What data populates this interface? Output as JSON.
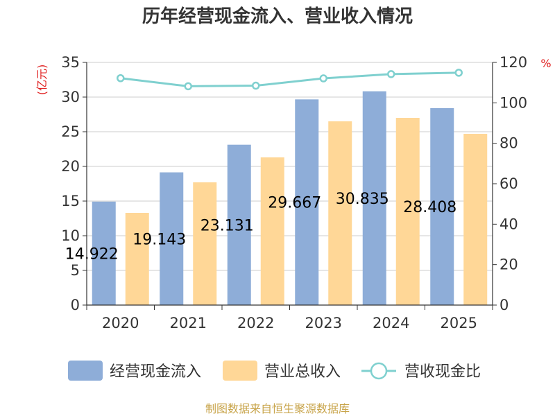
{
  "chart_data": {
    "type": "bar+line",
    "title": "历年经营现金流入、营业收入情况",
    "categories": [
      "2020",
      "2021",
      "2022",
      "2023",
      "2024",
      "2025"
    ],
    "series": [
      {
        "name": "经营现金流入",
        "type": "bar",
        "axis": "left",
        "values": [
          14.922,
          19.143,
          23.131,
          29.667,
          30.835,
          28.408
        ],
        "labels": [
          "14.922",
          "19.143",
          "23.131",
          "29.667",
          "30.835",
          "28.408"
        ]
      },
      {
        "name": "营业总收入",
        "type": "bar",
        "axis": "left",
        "values": [
          13.3,
          17.7,
          21.3,
          26.5,
          27.0,
          24.7
        ]
      },
      {
        "name": "营收现金比",
        "type": "line",
        "axis": "right",
        "values": [
          112.2,
          108.2,
          108.5,
          112.1,
          114.2,
          114.9
        ]
      }
    ],
    "y_left": {
      "unit": "(亿元)",
      "min": 0,
      "max": 35,
      "ticks": [
        0,
        5,
        10,
        15,
        20,
        25,
        30,
        35
      ]
    },
    "y_right": {
      "unit": "%",
      "min": 0,
      "max": 120,
      "ticks": [
        0,
        20,
        40,
        60,
        80,
        100,
        120
      ]
    },
    "grid": true,
    "legend_position": "bottom"
  },
  "colors": {
    "cash_inflow": "#8eadd8",
    "revenue": "#ffd797",
    "ratio": "#7fd0cf",
    "left_unit": "#e02020",
    "right_unit": "#e02020",
    "grid": "#cccccc",
    "axis": "#333333",
    "source": "#c8a44a"
  },
  "source": "制图数据来自恒生聚源数据库"
}
